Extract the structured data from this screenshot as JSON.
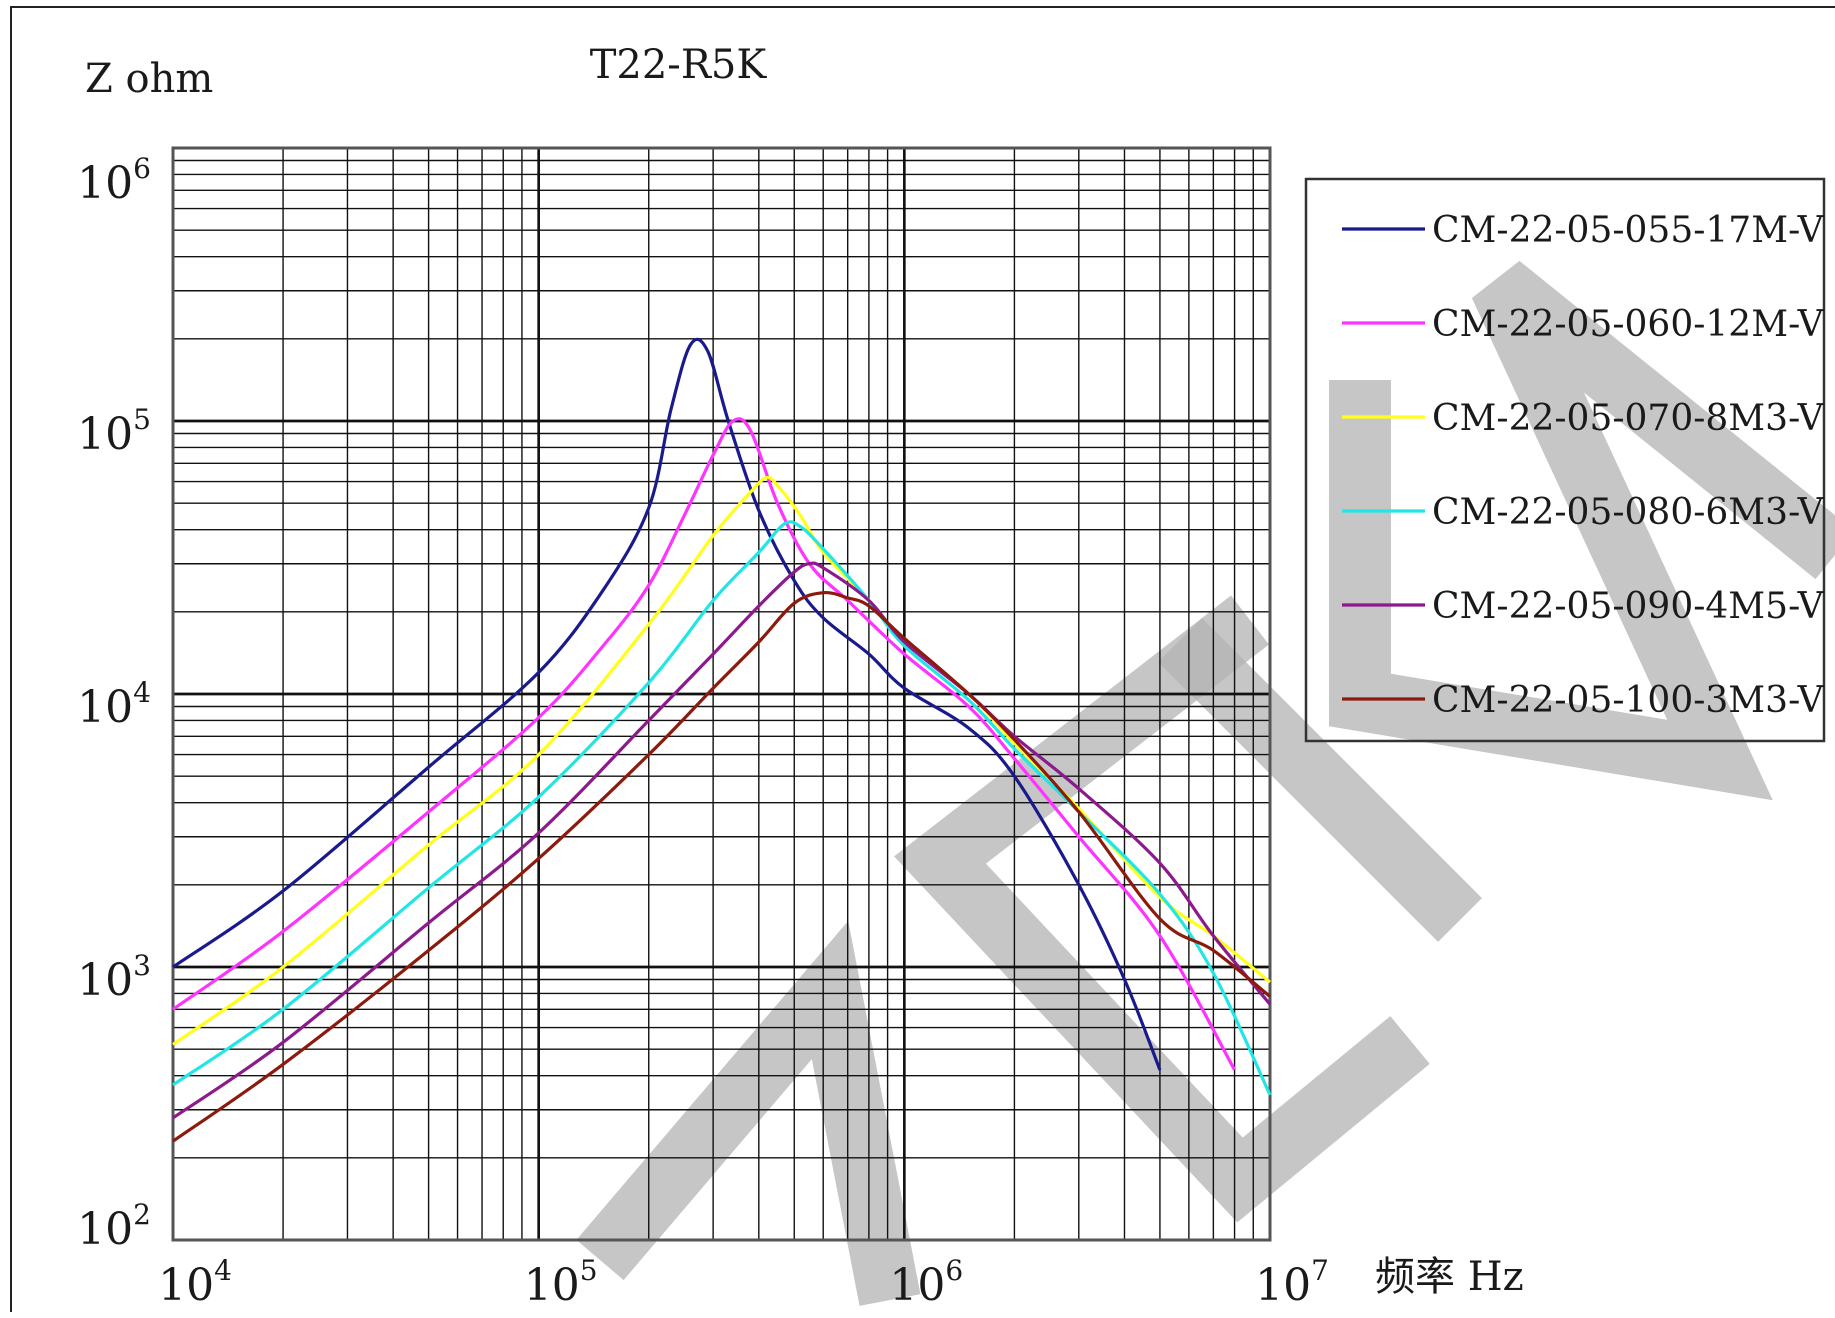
{
  "chart_data": {
    "type": "line",
    "title": "T22-R5K",
    "ylabel": "Z ohm",
    "xlabel": "频率 Hz",
    "x_scale": "log",
    "y_scale": "log",
    "xlim": [
      10000,
      10000000
    ],
    "ylim": [
      100,
      1000000
    ],
    "grid": true,
    "legend_position": "right",
    "x_ticks": [
      {
        "base": "10",
        "exp": "4"
      },
      {
        "base": "10",
        "exp": "5"
      },
      {
        "base": "10",
        "exp": "6"
      },
      {
        "base": "10",
        "exp": "7"
      }
    ],
    "y_ticks": [
      {
        "base": "10",
        "exp": "2"
      },
      {
        "base": "10",
        "exp": "3"
      },
      {
        "base": "10",
        "exp": "4"
      },
      {
        "base": "10",
        "exp": "5"
      },
      {
        "base": "10",
        "exp": "6"
      }
    ],
    "series": [
      {
        "name": "CM-22-05-055-17M-V",
        "color": "#1a1a8c",
        "x": [
          10000,
          20000,
          50000,
          100000,
          150000,
          200000,
          230000,
          260000,
          290000,
          330000,
          400000,
          500000,
          600000,
          800000,
          1000000,
          1500000,
          2000000,
          3000000,
          4000000,
          5000000
        ],
        "y": [
          1000,
          1900,
          5400,
          12000,
          24000,
          48000,
          110000,
          190000,
          180000,
          100000,
          47000,
          26000,
          19000,
          14000,
          10500,
          7500,
          5000,
          2000,
          900,
          420
        ]
      },
      {
        "name": "CM-22-05-060-12M-V",
        "color": "#ff33ff",
        "x": [
          10000,
          20000,
          50000,
          100000,
          150000,
          200000,
          250000,
          300000,
          340000,
          380000,
          450000,
          550000,
          700000,
          1000000,
          1500000,
          2000000,
          3000000,
          5000000,
          8000000
        ],
        "y": [
          700,
          1350,
          3700,
          8200,
          15000,
          25000,
          45000,
          75000,
          100000,
          92000,
          50000,
          30000,
          22000,
          14000,
          9000,
          5800,
          3000,
          1300,
          420
        ]
      },
      {
        "name": "CM-22-05-070-8M3-V",
        "color": "#ffff1a",
        "x": [
          10000,
          20000,
          50000,
          100000,
          200000,
          300000,
          380000,
          420000,
          450000,
          520000,
          600000,
          800000,
          1000000,
          1500000,
          2000000,
          3000000,
          5000000,
          7000000,
          10000000
        ],
        "y": [
          520,
          1000,
          2800,
          6000,
          18000,
          38000,
          55000,
          62000,
          58000,
          45000,
          33000,
          22000,
          15500,
          10000,
          6600,
          3800,
          1800,
          1300,
          880
        ]
      },
      {
        "name": "CM-22-05-080-6M3-V",
        "color": "#22e5e5",
        "x": [
          10000,
          20000,
          50000,
          100000,
          200000,
          300000,
          400000,
          470000,
          520000,
          600000,
          800000,
          1000000,
          1500000,
          2000000,
          3000000,
          5000000,
          7000000,
          10000000
        ],
        "y": [
          370,
          700,
          1950,
          4200,
          11000,
          22000,
          33000,
          42000,
          41000,
          34000,
          22000,
          15000,
          9500,
          6300,
          3700,
          1850,
          950,
          340
        ]
      },
      {
        "name": "CM-22-05-090-4M5-V",
        "color": "#8c1a8c",
        "x": [
          10000,
          20000,
          50000,
          100000,
          200000,
          300000,
          400000,
          500000,
          550000,
          600000,
          800000,
          1000000,
          1500000,
          2000000,
          3000000,
          5000000,
          7000000,
          10000000
        ],
        "y": [
          280,
          530,
          1450,
          3100,
          8000,
          14000,
          21000,
          28000,
          30000,
          29000,
          22000,
          15500,
          10000,
          7000,
          4500,
          2400,
          1300,
          730
        ]
      },
      {
        "name": "CM-22-05-100-3M3-V",
        "color": "#8c1a0d",
        "x": [
          10000,
          20000,
          50000,
          100000,
          200000,
          300000,
          400000,
          500000,
          600000,
          700000,
          800000,
          1000000,
          1500000,
          2000000,
          3000000,
          5000000,
          7000000,
          10000000
        ],
        "y": [
          230,
          440,
          1150,
          2500,
          6000,
          10500,
          15500,
          21500,
          23500,
          22500,
          21000,
          16000,
          10000,
          6800,
          3700,
          1500,
          1150,
          780
        ]
      }
    ]
  }
}
